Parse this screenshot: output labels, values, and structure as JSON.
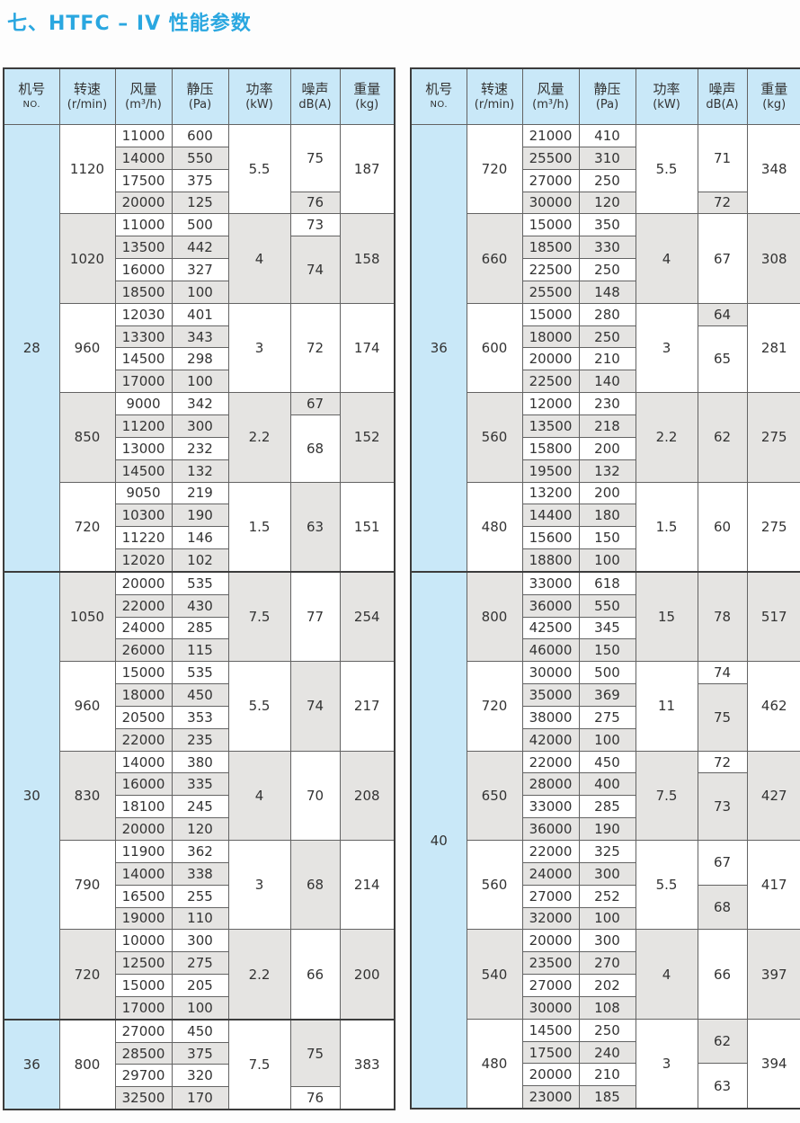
{
  "title": "七、HTFC – IV 性能参数",
  "colors": {
    "title_accent": "#2aa7e0",
    "header_bg": "#c9e8f8",
    "model_column_bg": "#c9e8f8",
    "shade_gray": "#e5e4e2",
    "border": "#636363",
    "border_heavy": "#3c3c3c"
  },
  "header": {
    "columns": [
      {
        "line1": "机号",
        "line2": "NO."
      },
      {
        "line1": "转速",
        "line2": "(r/min)"
      },
      {
        "line1": "风量",
        "line2": "(m³/h)"
      },
      {
        "line1": "静压",
        "line2": "(Pa)"
      },
      {
        "line1": "功率",
        "line2": "(kW)"
      },
      {
        "line1": "噪声",
        "line2": "dB(A)"
      },
      {
        "line1": "重量",
        "line2": "(kg)"
      }
    ]
  },
  "tables": [
    {
      "sections": [
        {
          "model": "28",
          "blocks": [
            {
              "speed": "1120",
              "rows": [
                [
                  "11000",
                  "600"
                ],
                [
                  "14000",
                  "550"
                ],
                [
                  "17500",
                  "375"
                ],
                [
                  "20000",
                  "125"
                ]
              ],
              "power": "5.5",
              "noise": [
                {
                  "value": "75",
                  "span": 3
                },
                {
                  "value": "76",
                  "span": 1
                }
              ],
              "weight": "187"
            },
            {
              "speed": "1020",
              "rows": [
                [
                  "11000",
                  "500"
                ],
                [
                  "13500",
                  "442"
                ],
                [
                  "16000",
                  "327"
                ],
                [
                  "18500",
                  "100"
                ]
              ],
              "power": "4",
              "noise": [
                {
                  "value": "73",
                  "span": 1
                },
                {
                  "value": "74",
                  "span": 3
                }
              ],
              "weight": "158"
            },
            {
              "speed": "960",
              "rows": [
                [
                  "12030",
                  "401"
                ],
                [
                  "13300",
                  "343"
                ],
                [
                  "14500",
                  "298"
                ],
                [
                  "17000",
                  "100"
                ]
              ],
              "power": "3",
              "noise": [
                {
                  "value": "72",
                  "span": 4
                }
              ],
              "weight": "174"
            },
            {
              "speed": "850",
              "rows": [
                [
                  "9000",
                  "342"
                ],
                [
                  "11200",
                  "300"
                ],
                [
                  "13000",
                  "232"
                ],
                [
                  "14500",
                  "132"
                ]
              ],
              "power": "2.2",
              "noise": [
                {
                  "value": "67",
                  "span": 1
                },
                {
                  "value": "68",
                  "span": 3
                }
              ],
              "weight": "152"
            },
            {
              "speed": "720",
              "rows": [
                [
                  "9050",
                  "219"
                ],
                [
                  "10300",
                  "190"
                ],
                [
                  "11220",
                  "146"
                ],
                [
                  "12020",
                  "102"
                ]
              ],
              "power": "1.5",
              "noise": [
                {
                  "value": "63",
                  "span": 4
                }
              ],
              "weight": "151"
            }
          ]
        },
        {
          "model": "30",
          "blocks": [
            {
              "speed": "1050",
              "rows": [
                [
                  "20000",
                  "535"
                ],
                [
                  "22000",
                  "430"
                ],
                [
                  "24000",
                  "285"
                ],
                [
                  "26000",
                  "115"
                ]
              ],
              "power": "7.5",
              "noise": [
                {
                  "value": "77",
                  "span": 4
                }
              ],
              "weight": "254"
            },
            {
              "speed": "960",
              "rows": [
                [
                  "15000",
                  "535"
                ],
                [
                  "18000",
                  "450"
                ],
                [
                  "20500",
                  "353"
                ],
                [
                  "22000",
                  "235"
                ]
              ],
              "power": "5.5",
              "noise": [
                {
                  "value": "74",
                  "span": 4
                }
              ],
              "weight": "217"
            },
            {
              "speed": "830",
              "rows": [
                [
                  "14000",
                  "380"
                ],
                [
                  "16000",
                  "335"
                ],
                [
                  "18100",
                  "245"
                ],
                [
                  "20000",
                  "120"
                ]
              ],
              "power": "4",
              "noise": [
                {
                  "value": "70",
                  "span": 4
                }
              ],
              "weight": "208"
            },
            {
              "speed": "790",
              "rows": [
                [
                  "11900",
                  "362"
                ],
                [
                  "14000",
                  "338"
                ],
                [
                  "16500",
                  "255"
                ],
                [
                  "19000",
                  "110"
                ]
              ],
              "power": "3",
              "noise": [
                {
                  "value": "68",
                  "span": 4
                }
              ],
              "weight": "214"
            },
            {
              "speed": "720",
              "rows": [
                [
                  "10000",
                  "300"
                ],
                [
                  "12500",
                  "275"
                ],
                [
                  "15000",
                  "205"
                ],
                [
                  "17000",
                  "100"
                ]
              ],
              "power": "2.2",
              "noise": [
                {
                  "value": "66",
                  "span": 4
                }
              ],
              "weight": "200"
            }
          ]
        },
        {
          "model": "36",
          "blocks": [
            {
              "speed": "800",
              "rows": [
                [
                  "27000",
                  "450"
                ],
                [
                  "28500",
                  "375"
                ],
                [
                  "29700",
                  "320"
                ],
                [
                  "32500",
                  "170"
                ]
              ],
              "power": "7.5",
              "noise": [
                {
                  "value": "75",
                  "span": 3
                },
                {
                  "value": "76",
                  "span": 1
                }
              ],
              "weight": "383"
            }
          ]
        }
      ]
    },
    {
      "sections": [
        {
          "model": "36",
          "blocks": [
            {
              "speed": "720",
              "rows": [
                [
                  "21000",
                  "410"
                ],
                [
                  "25500",
                  "310"
                ],
                [
                  "27000",
                  "250"
                ],
                [
                  "30000",
                  "120"
                ]
              ],
              "power": "5.5",
              "noise": [
                {
                  "value": "71",
                  "span": 3
                },
                {
                  "value": "72",
                  "span": 1
                }
              ],
              "weight": "348"
            },
            {
              "speed": "660",
              "rows": [
                [
                  "15000",
                  "350"
                ],
                [
                  "18500",
                  "330"
                ],
                [
                  "22500",
                  "250"
                ],
                [
                  "25500",
                  "148"
                ]
              ],
              "power": "4",
              "noise": [
                {
                  "value": "67",
                  "span": 4
                }
              ],
              "weight": "308"
            },
            {
              "speed": "600",
              "rows": [
                [
                  "15000",
                  "280"
                ],
                [
                  "18000",
                  "250"
                ],
                [
                  "20000",
                  "210"
                ],
                [
                  "22500",
                  "140"
                ]
              ],
              "power": "3",
              "noise": [
                {
                  "value": "64",
                  "span": 1
                },
                {
                  "value": "65",
                  "span": 3
                }
              ],
              "weight": "281"
            },
            {
              "speed": "560",
              "rows": [
                [
                  "12000",
                  "230"
                ],
                [
                  "13500",
                  "218"
                ],
                [
                  "15800",
                  "200"
                ],
                [
                  "19500",
                  "132"
                ]
              ],
              "power": "2.2",
              "noise": [
                {
                  "value": "62",
                  "span": 4
                }
              ],
              "weight": "275"
            },
            {
              "speed": "480",
              "rows": [
                [
                  "13200",
                  "200"
                ],
                [
                  "14400",
                  "180"
                ],
                [
                  "15600",
                  "150"
                ],
                [
                  "18800",
                  "100"
                ]
              ],
              "power": "1.5",
              "noise": [
                {
                  "value": "60",
                  "span": 4
                }
              ],
              "weight": "275"
            }
          ]
        },
        {
          "model": "40",
          "blocks": [
            {
              "speed": "800",
              "rows": [
                [
                  "33000",
                  "618"
                ],
                [
                  "36000",
                  "550"
                ],
                [
                  "42500",
                  "345"
                ],
                [
                  "46000",
                  "150"
                ]
              ],
              "power": "15",
              "noise": [
                {
                  "value": "78",
                  "span": 4
                }
              ],
              "weight": "517"
            },
            {
              "speed": "720",
              "rows": [
                [
                  "30000",
                  "500"
                ],
                [
                  "35000",
                  "369"
                ],
                [
                  "38000",
                  "275"
                ],
                [
                  "42000",
                  "100"
                ]
              ],
              "power": "11",
              "noise": [
                {
                  "value": "74",
                  "span": 1
                },
                {
                  "value": "75",
                  "span": 3
                }
              ],
              "weight": "462"
            },
            {
              "speed": "650",
              "rows": [
                [
                  "22000",
                  "450"
                ],
                [
                  "28000",
                  "400"
                ],
                [
                  "33000",
                  "285"
                ],
                [
                  "36000",
                  "190"
                ]
              ],
              "power": "7.5",
              "noise": [
                {
                  "value": "72",
                  "span": 1
                },
                {
                  "value": "73",
                  "span": 3
                }
              ],
              "weight": "427"
            },
            {
              "speed": "560",
              "rows": [
                [
                  "22000",
                  "325"
                ],
                [
                  "24000",
                  "300"
                ],
                [
                  "27000",
                  "252"
                ],
                [
                  "32000",
                  "100"
                ]
              ],
              "power": "5.5",
              "noise": [
                {
                  "value": "67",
                  "span": 2
                },
                {
                  "value": "68",
                  "span": 2
                }
              ],
              "weight": "417"
            },
            {
              "speed": "540",
              "rows": [
                [
                  "20000",
                  "300"
                ],
                [
                  "23500",
                  "270"
                ],
                [
                  "27000",
                  "202"
                ],
                [
                  "30000",
                  "108"
                ]
              ],
              "power": "4",
              "noise": [
                {
                  "value": "66",
                  "span": 4
                }
              ],
              "weight": "397"
            },
            {
              "speed": "480",
              "rows": [
                [
                  "14500",
                  "250"
                ],
                [
                  "17500",
                  "240"
                ],
                [
                  "20000",
                  "210"
                ],
                [
                  "23000",
                  "185"
                ]
              ],
              "power": "3",
              "noise": [
                {
                  "value": "62",
                  "span": 2
                },
                {
                  "value": "63",
                  "span": 2
                }
              ],
              "weight": "394"
            }
          ]
        }
      ]
    }
  ]
}
